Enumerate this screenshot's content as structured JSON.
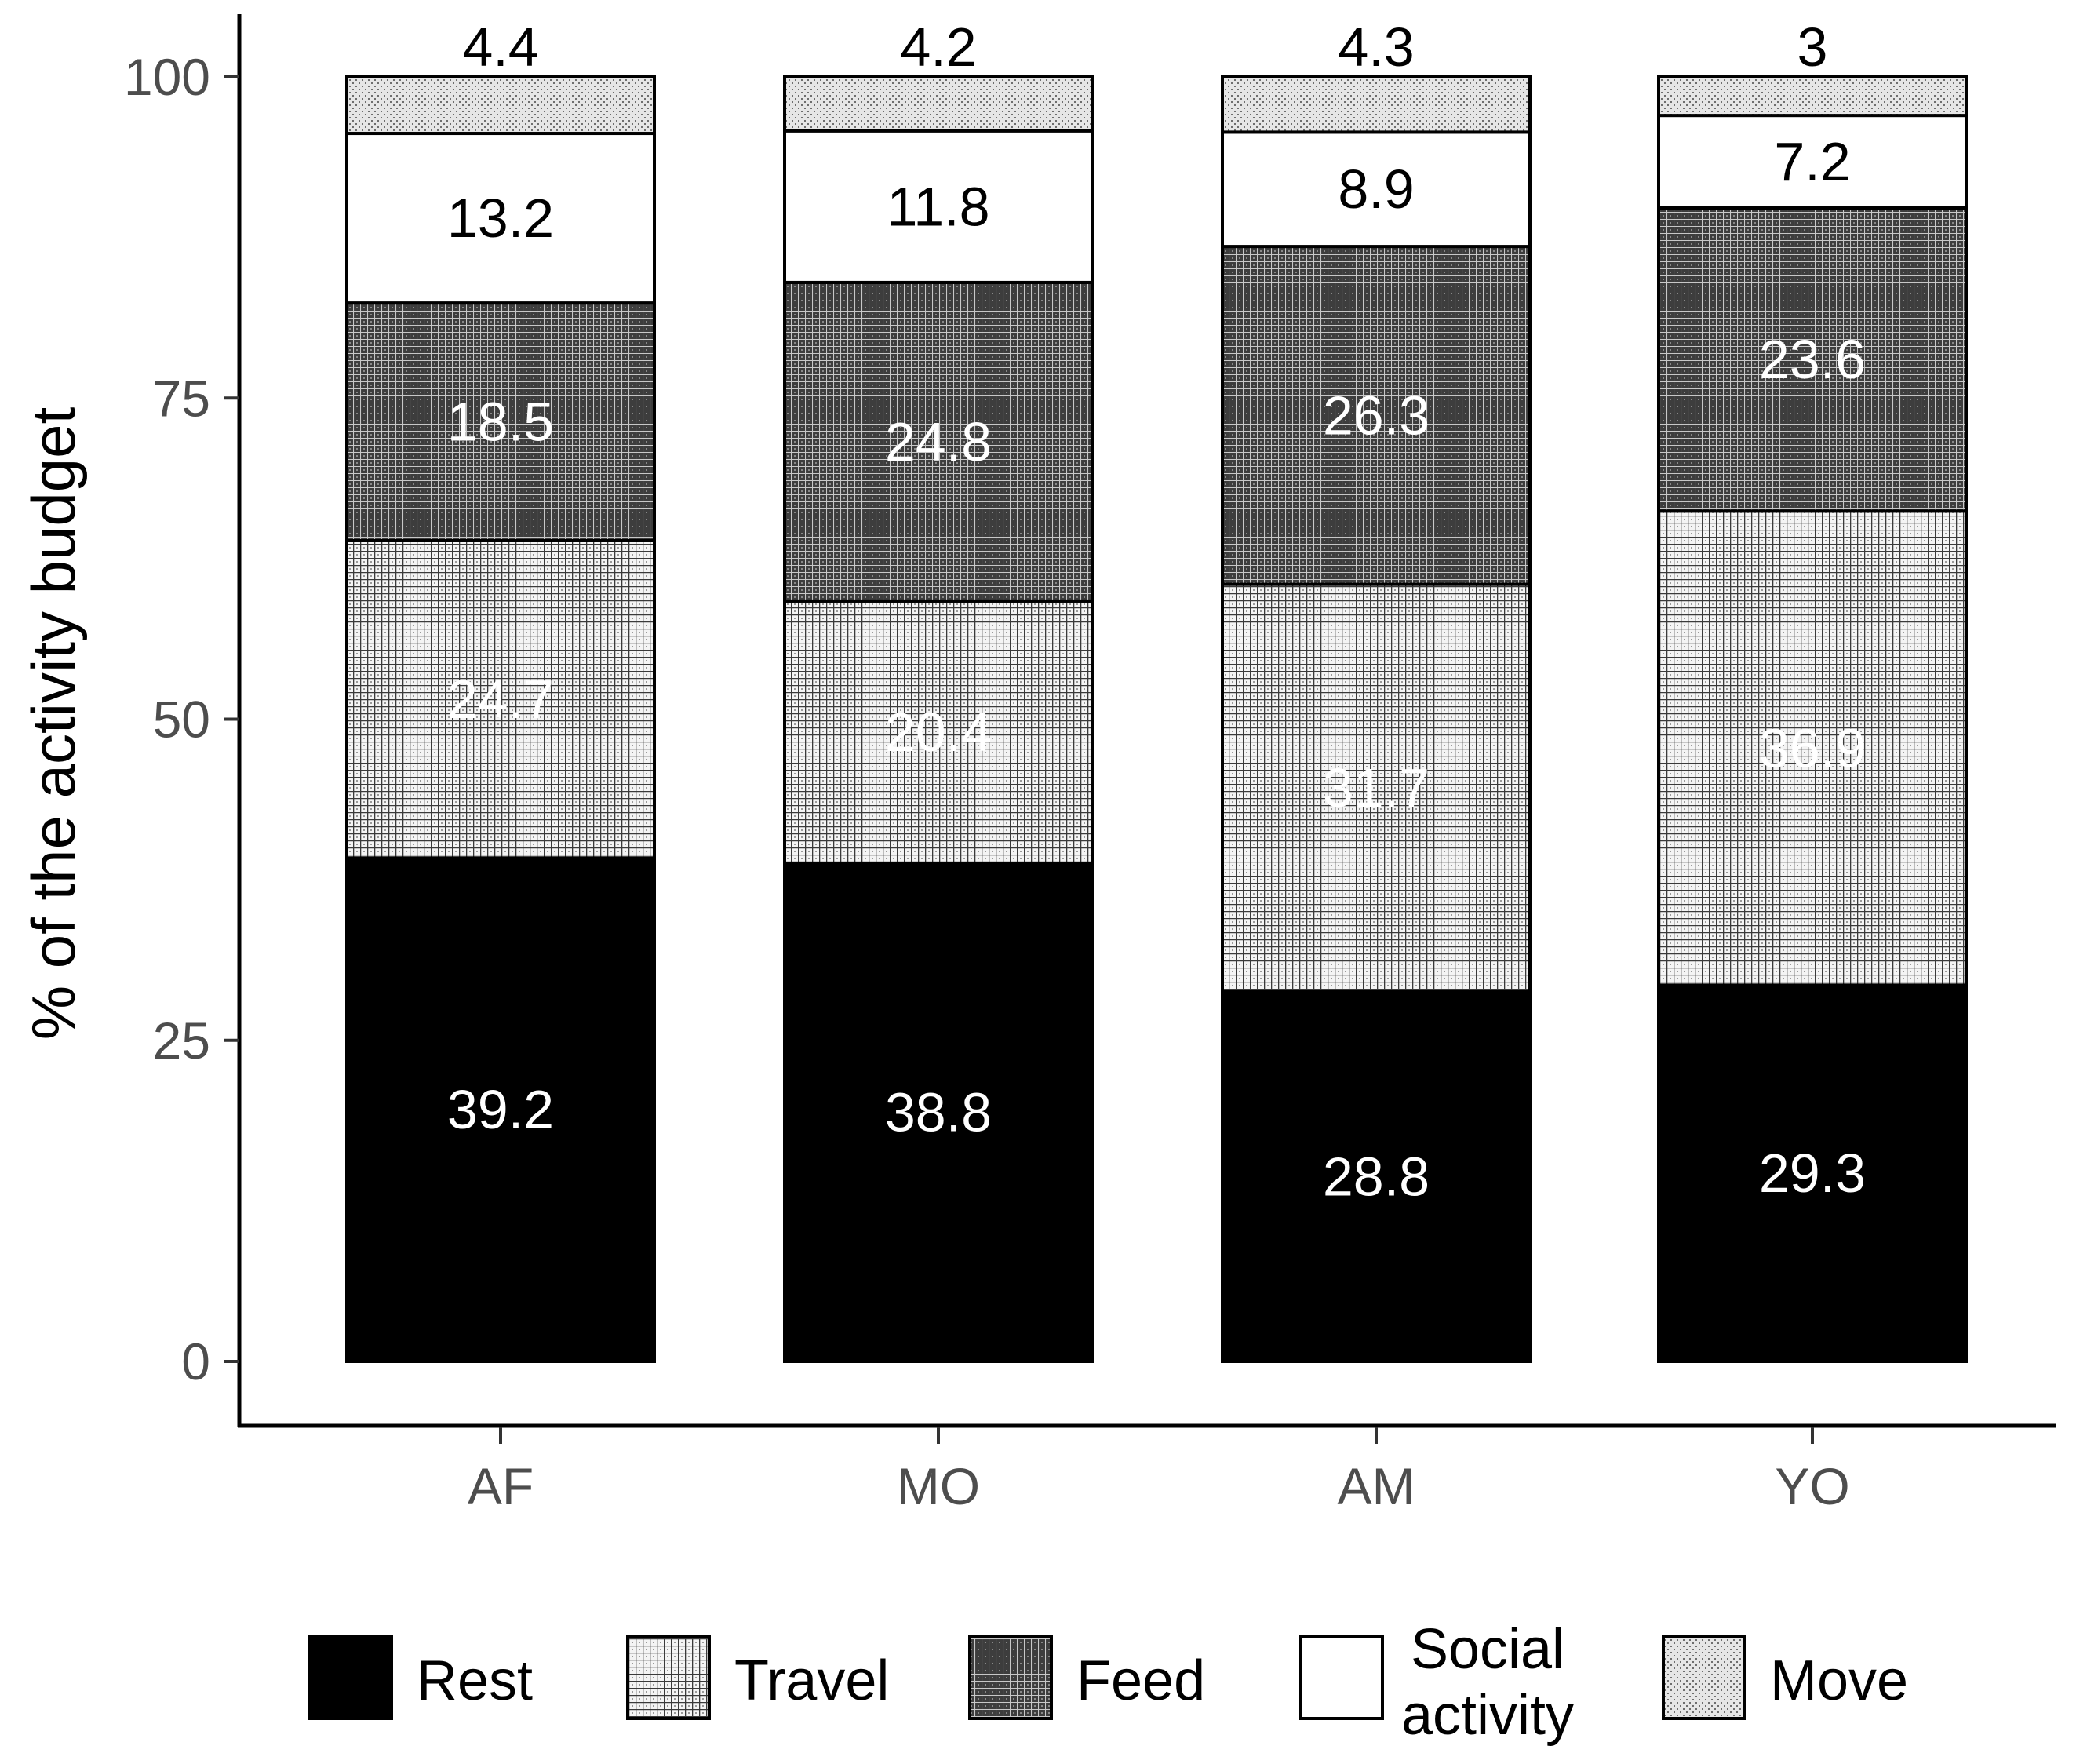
{
  "chart_data": {
    "type": "bar",
    "stacked": true,
    "title": "",
    "xlabel": "",
    "ylabel": "% of the activity budget",
    "ylim": [
      0,
      100
    ],
    "yticks": [
      0,
      25,
      50,
      75,
      100
    ],
    "grid": false,
    "legend_position": "bottom",
    "categories": [
      "AF",
      "MO",
      "AM",
      "YO"
    ],
    "series": [
      {
        "name": "Rest",
        "values": [
          39.2,
          38.8,
          28.8,
          29.3
        ],
        "pattern": "solid-black",
        "label_color": "#ffffff"
      },
      {
        "name": "Travel",
        "values": [
          24.7,
          20.4,
          31.7,
          36.9
        ],
        "pattern": "light-grid",
        "label_color": "#ffffff"
      },
      {
        "name": "Feed",
        "values": [
          18.5,
          24.8,
          26.3,
          23.6
        ],
        "pattern": "dark-grid",
        "label_color": "#ffffff"
      },
      {
        "name": "Social activity",
        "legend_lines": [
          "Social",
          "activity"
        ],
        "values": [
          13.2,
          11.8,
          8.9,
          7.2
        ],
        "pattern": "white",
        "label_color": "#000000"
      },
      {
        "name": "Move",
        "values": [
          4.4,
          4.2,
          4.3,
          3
        ],
        "pattern": "dots",
        "label_color": "#000000"
      }
    ]
  }
}
